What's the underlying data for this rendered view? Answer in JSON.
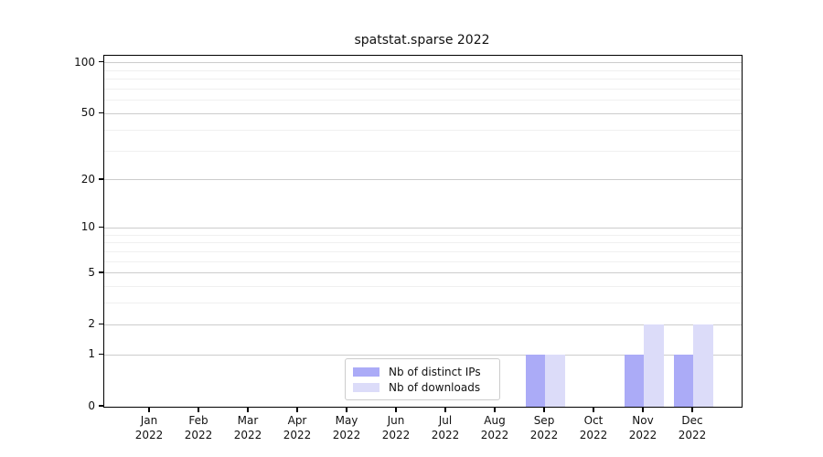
{
  "chart_data": {
    "type": "bar",
    "title": "spatstat.sparse 2022",
    "categories": [
      "Jan 2022",
      "Feb 2022",
      "Mar 2022",
      "Apr 2022",
      "May 2022",
      "Jun 2022",
      "Jul 2022",
      "Aug 2022",
      "Sep 2022",
      "Oct 2022",
      "Nov 2022",
      "Dec 2022"
    ],
    "series": [
      {
        "name": "Nb of distinct IPs",
        "color": "#ababf7",
        "values": [
          0,
          0,
          0,
          0,
          0,
          0,
          0,
          0,
          1,
          0,
          1,
          1
        ]
      },
      {
        "name": "Nb of downloads",
        "color": "#dcdcf9",
        "values": [
          0,
          0,
          0,
          0,
          0,
          0,
          0,
          0,
          1,
          0,
          2,
          2
        ]
      }
    ],
    "xlabel": "",
    "ylabel": "",
    "yscale": "log1p",
    "ylim": [
      0,
      110
    ],
    "y_major_ticks": [
      0,
      1,
      2,
      5,
      10,
      20,
      50,
      100
    ],
    "y_minor_ticks": [
      3,
      4,
      6,
      7,
      8,
      9,
      30,
      40,
      60,
      70,
      80,
      90
    ],
    "grid": "horizontal",
    "legend_position": "lower center",
    "colors": {
      "grid_major": "#cccccc",
      "grid_minor": "#f0f0f0",
      "spine": "#000000"
    }
  }
}
